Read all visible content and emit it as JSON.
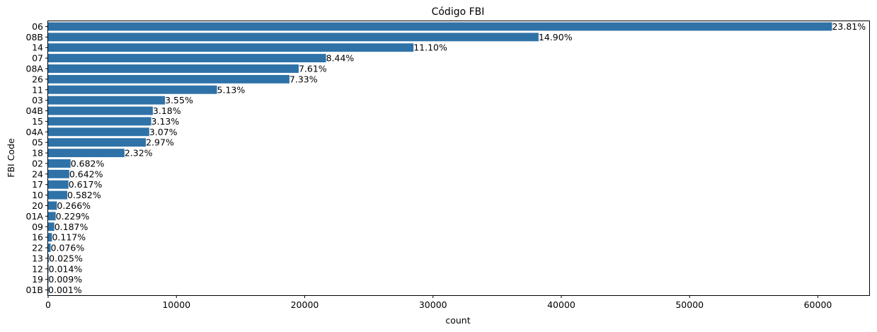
{
  "chart_data": {
    "type": "bar",
    "orientation": "horizontal",
    "title": "Código FBI",
    "xlabel": "count",
    "ylabel": "FBI Code",
    "xlim": [
      0,
      64000
    ],
    "x_ticks": [
      0,
      10000,
      20000,
      30000,
      40000,
      50000,
      60000
    ],
    "x_tick_labels": [
      "0",
      "10000",
      "20000",
      "30000",
      "40000",
      "50000",
      "60000"
    ],
    "grid": false,
    "bar_color": "#2f72a8",
    "categories": [
      "06",
      "08B",
      "14",
      "07",
      "08A",
      "26",
      "11",
      "03",
      "04B",
      "15",
      "04A",
      "05",
      "18",
      "02",
      "24",
      "17",
      "10",
      "20",
      "01A",
      "09",
      "16",
      "22",
      "13",
      "12",
      "19",
      "01B"
    ],
    "values": [
      61100,
      38230,
      28480,
      21660,
      19530,
      18810,
      13160,
      9110,
      8160,
      8030,
      7880,
      7620,
      5950,
      1750,
      1647,
      1583,
      1493,
      683,
      588,
      480,
      300,
      195,
      64,
      36,
      23,
      3
    ],
    "data_labels": [
      "23.81%",
      "14.90%",
      "11.10%",
      "8.44%",
      "7.61%",
      "7.33%",
      "5.13%",
      "3.55%",
      "3.18%",
      "3.13%",
      "3.07%",
      "2.97%",
      "2.32%",
      "0.682%",
      "0.642%",
      "0.617%",
      "0.582%",
      "0.266%",
      "0.229%",
      "0.187%",
      "0.117%",
      "0.076%",
      "0.025%",
      "0.014%",
      "0.009%",
      "0.001%"
    ]
  }
}
